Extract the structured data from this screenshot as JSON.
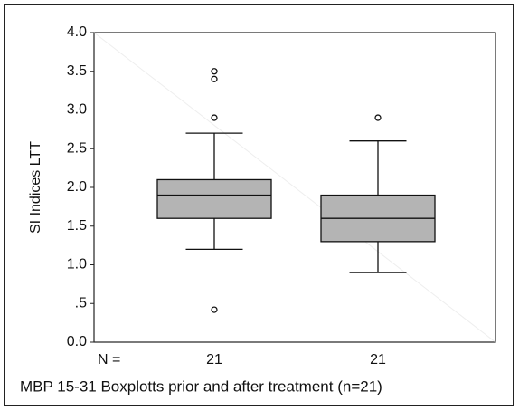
{
  "chart_data": {
    "type": "box",
    "caption": "MBP 15-31 Boxplotts prior and after treatment (n=21)",
    "y_label": "SI Indices LTT",
    "categories": [
      null,
      null
    ],
    "n_label": "N =",
    "n": [
      21,
      21
    ],
    "color": "#b4b4b4",
    "boxes": [
      {
        "min": 1.2,
        "q1": 1.6,
        "median": 1.9,
        "q3": 2.1,
        "max": 2.7,
        "outliers": [
          3.5,
          3.4,
          2.9,
          0.42
        ]
      },
      {
        "min": 0.9,
        "q1": 1.3,
        "median": 1.6,
        "q3": 1.9,
        "max": 2.6,
        "outliers": [
          2.9
        ]
      }
    ],
    "ylim": [
      0,
      4
    ],
    "yticks": [
      {
        "value": 0,
        "label": "0.0"
      },
      {
        "value": 0.5,
        "label": ".5"
      },
      {
        "value": 1,
        "label": "1.0"
      },
      1.5,
      {
        "value": 2,
        "label": "2.0"
      },
      2.5,
      {
        "value": 3,
        "label": "3.0"
      },
      3.5,
      {
        "value": 4,
        "label": "4.0"
      }
    ]
  }
}
